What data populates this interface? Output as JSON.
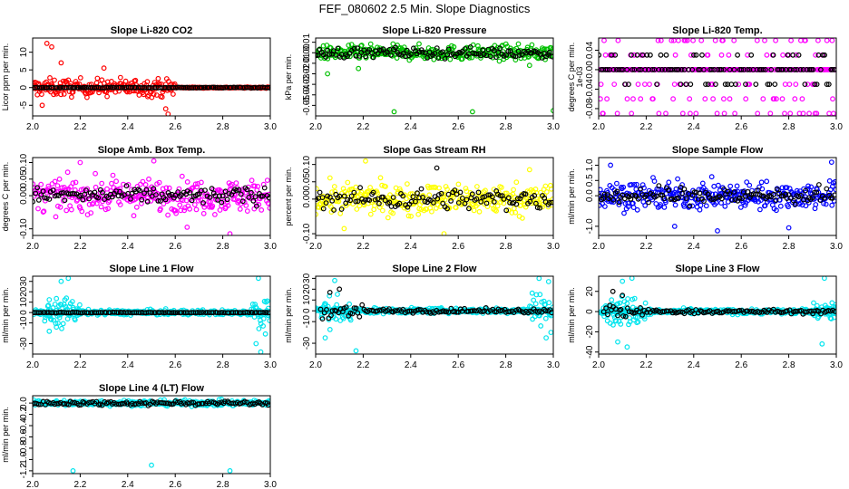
{
  "figure": {
    "title": "FEF_080602  2.5 Min. Slope Diagnostics"
  },
  "chart_data": [
    {
      "type": "scatter",
      "title": "Slope Li-820 CO2",
      "ylabel": "Licor ppm per min.",
      "xlim": [
        2.0,
        3.0
      ],
      "ylim": [
        -8,
        14
      ],
      "x_ticks": [
        "2.0",
        "2.2",
        "2.4",
        "2.6",
        "2.8",
        "3.0"
      ],
      "y_ticks": [
        "-5",
        "0",
        "5",
        "10"
      ],
      "series": [
        {
          "name": "all",
          "color": "#ff0000",
          "spread": 2.5,
          "x_range": [
            2.0,
            2.6
          ],
          "outliers": [
            [
              2.06,
              12.5
            ],
            [
              2.08,
              11.5
            ],
            [
              2.04,
              -5
            ],
            [
              2.56,
              -6
            ],
            [
              2.57,
              -7.5
            ],
            [
              2.12,
              7
            ],
            [
              2.3,
              5.5
            ]
          ]
        },
        {
          "name": "all",
          "color": "#ff0000",
          "spread": 0.15,
          "x_range": [
            2.6,
            3.0
          ],
          "outliers": []
        },
        {
          "name": "selected",
          "color": "#000000",
          "spread": 0.1,
          "x_range": [
            2.0,
            3.0
          ],
          "outliers": []
        }
      ]
    },
    {
      "type": "scatter",
      "title": "Slope Li-820 Pressure",
      "ylabel": "kPa per min.",
      "xlim": [
        2.0,
        3.0
      ],
      "ylim": [
        -0.06,
        0.014
      ],
      "x_ticks": [
        "2.0",
        "2.2",
        "2.4",
        "2.6",
        "2.8",
        "3.0"
      ],
      "y_ticks": [
        "-0.05",
        "-0.04",
        "-0.03",
        "-0.02",
        "-0.01",
        "0.00",
        "0.01"
      ],
      "series": [
        {
          "name": "all",
          "color": "#00c000",
          "spread": 0.007,
          "x_range": [
            2.0,
            3.0
          ],
          "outliers": [
            [
              2.33,
              -0.056
            ],
            [
              2.66,
              -0.056
            ],
            [
              3.0,
              -0.055
            ],
            [
              2.05,
              -0.02
            ],
            [
              2.9,
              -0.012
            ],
            [
              2.18,
              -0.015
            ]
          ]
        },
        {
          "name": "selected",
          "color": "#000000",
          "spread": 0.005,
          "x_range": [
            2.0,
            3.0
          ],
          "outliers": []
        }
      ]
    },
    {
      "type": "scatter",
      "title": "Slope Li-820 Temp.",
      "ylabel": "degrees C per min.",
      "y_multiplier": "1e-03",
      "xlim": [
        2.0,
        3.0
      ],
      "ylim": [
        -0.095,
        0.065
      ],
      "x_ticks": [
        "2.0",
        "2.2",
        "2.4",
        "2.6",
        "2.8",
        "3.0"
      ],
      "y_ticks": [
        "-0.08",
        "-0.04",
        "0.00",
        "0.04"
      ],
      "series": [
        {
          "name": "all",
          "color": "#ff00ff",
          "levels": [
            0.06,
            0.03,
            0.0,
            -0.03,
            -0.06,
            -0.09
          ],
          "x_range": [
            2.0,
            3.0
          ],
          "outliers": []
        },
        {
          "name": "selected",
          "color": "#000000",
          "levels": [
            0.0,
            0.0,
            0.0,
            0.03,
            -0.03
          ],
          "x_range": [
            2.0,
            3.0
          ],
          "outliers": []
        }
      ]
    },
    {
      "type": "scatter",
      "title": "Slope Amb. Box Temp.",
      "ylabel": "degrees C per min.",
      "xlim": [
        2.0,
        3.0
      ],
      "ylim": [
        -0.12,
        0.115
      ],
      "x_ticks": [
        "2.0",
        "2.2",
        "2.4",
        "2.6",
        "2.8",
        "3.0"
      ],
      "y_ticks": [
        "-0.10",
        "0.00",
        "0.05",
        "0.10"
      ],
      "series": [
        {
          "name": "all",
          "color": "#ff00ff",
          "spread": 0.05,
          "x_range": [
            2.0,
            3.0
          ],
          "outliers": [
            [
              2.51,
              0.105
            ],
            [
              2.83,
              -0.115
            ],
            [
              2.2,
              0.1
            ],
            [
              2.65,
              -0.095
            ]
          ]
        },
        {
          "name": "selected",
          "color": "#000000",
          "spread": 0.025,
          "x_range": [
            2.0,
            3.0
          ],
          "outliers": []
        }
      ]
    },
    {
      "type": "scatter",
      "title": "Slope Gas Stream RH",
      "ylabel": "percent per min.",
      "xlim": [
        2.0,
        3.0
      ],
      "ylim": [
        -0.105,
        0.12
      ],
      "x_ticks": [
        "2.0",
        "2.2",
        "2.4",
        "2.6",
        "2.8",
        "3.0"
      ],
      "y_ticks": [
        "-0.10",
        "0.00",
        "0.05",
        "0.10"
      ],
      "series": [
        {
          "name": "all",
          "color": "#ffff00",
          "spread": 0.045,
          "x_range": [
            2.0,
            3.0
          ],
          "outliers": [
            [
              2.21,
              0.11
            ],
            [
              2.54,
              -0.1
            ],
            [
              2.12,
              -0.085
            ],
            [
              2.9,
              0.085
            ]
          ]
        },
        {
          "name": "selected",
          "color": "#000000",
          "spread": 0.03,
          "x_range": [
            2.0,
            3.0
          ],
          "outliers": [
            [
              2.51,
              0.09
            ]
          ]
        }
      ]
    },
    {
      "type": "scatter",
      "title": "Slope Sample Flow",
      "ylabel": "ml/min per min.",
      "xlim": [
        2.0,
        3.0
      ],
      "ylim": [
        -1.3,
        1.25
      ],
      "x_ticks": [
        "2.0",
        "2.2",
        "2.4",
        "2.6",
        "2.8",
        "3.0"
      ],
      "y_ticks": [
        "-1.0",
        "0.0",
        "0.5",
        "1.0"
      ],
      "series": [
        {
          "name": "all",
          "color": "#0000ff",
          "spread": 0.45,
          "x_range": [
            2.0,
            3.0
          ],
          "outliers": [
            [
              2.5,
              -1.15
            ],
            [
              2.8,
              -1.05
            ],
            [
              2.05,
              1.0
            ],
            [
              2.98,
              1.1
            ],
            [
              2.32,
              -1.0
            ]
          ]
        },
        {
          "name": "selected",
          "color": "#000000",
          "spread": 0.3,
          "x_range": [
            2.0,
            3.0
          ],
          "outliers": []
        }
      ]
    },
    {
      "type": "scatter",
      "title": "Slope Line 1 Flow",
      "ylabel": "ml/min per min.",
      "xlim": [
        2.0,
        3.0
      ],
      "ylim": [
        -40,
        35
      ],
      "x_ticks": [
        "2.0",
        "2.2",
        "2.4",
        "2.6",
        "2.8",
        "3.0"
      ],
      "y_ticks": [
        "-30",
        "-10",
        "0",
        "10",
        "20",
        "30"
      ],
      "series": [
        {
          "name": "all",
          "color": "#00e5ee",
          "spread": 2.5,
          "x_range": [
            2.0,
            3.0
          ],
          "outliers": []
        },
        {
          "name": "all",
          "color": "#00e5ee",
          "spread": 14,
          "x_range": [
            2.05,
            2.2
          ],
          "outliers": [
            [
              2.15,
              33
            ],
            [
              2.12,
              30
            ],
            [
              2.07,
              -18
            ],
            [
              2.1,
              -14
            ]
          ]
        },
        {
          "name": "all",
          "color": "#00e5ee",
          "spread": 16,
          "x_range": [
            2.92,
            3.0
          ],
          "outliers": [
            [
              2.95,
              33
            ],
            [
              2.96,
              -38
            ],
            [
              2.94,
              -30
            ]
          ]
        },
        {
          "name": "selected",
          "color": "#000000",
          "spread": 0.3,
          "x_range": [
            2.0,
            3.0
          ],
          "outliers": []
        }
      ]
    },
    {
      "type": "scatter",
      "title": "Slope Line 2 Flow",
      "ylabel": "ml/min per min.",
      "xlim": [
        2.0,
        3.0
      ],
      "ylim": [
        -40,
        32
      ],
      "x_ticks": [
        "2.0",
        "2.2",
        "2.4",
        "2.6",
        "2.8",
        "3.0"
      ],
      "y_ticks": [
        "-30",
        "-10",
        "0",
        "10",
        "20",
        "30"
      ],
      "series": [
        {
          "name": "all",
          "color": "#00e5ee",
          "spread": 2.5,
          "x_range": [
            2.0,
            3.0
          ],
          "outliers": []
        },
        {
          "name": "all",
          "color": "#00e5ee",
          "spread": 13,
          "x_range": [
            2.02,
            2.15
          ],
          "outliers": [
            [
              2.08,
              28
            ],
            [
              2.04,
              -25
            ],
            [
              2.17,
              -37
            ]
          ]
        },
        {
          "name": "all",
          "color": "#00e5ee",
          "spread": 15,
          "x_range": [
            2.9,
            3.0
          ],
          "outliers": [
            [
              2.94,
              30
            ],
            [
              2.98,
              27
            ],
            [
              2.97,
              -25
            ],
            [
              2.99,
              -20
            ]
          ]
        },
        {
          "name": "selected",
          "color": "#000000",
          "spread": 7,
          "x_range": [
            2.02,
            2.2
          ],
          "outliers": [
            [
              2.06,
              17
            ],
            [
              2.1,
              20
            ]
          ]
        },
        {
          "name": "selected",
          "color": "#000000",
          "spread": 2,
          "x_range": [
            2.2,
            3.0
          ],
          "outliers": []
        }
      ]
    },
    {
      "type": "scatter",
      "title": "Slope Line 3 Flow",
      "ylabel": "ml/min per min.",
      "xlim": [
        2.0,
        3.0
      ],
      "ylim": [
        -42,
        35
      ],
      "x_ticks": [
        "2.0",
        "2.2",
        "2.4",
        "2.6",
        "2.8",
        "3.0"
      ],
      "y_ticks": [
        "-40",
        "-20",
        "0",
        "20"
      ],
      "series": [
        {
          "name": "all",
          "color": "#00e5ee",
          "spread": 2.5,
          "x_range": [
            2.0,
            3.0
          ],
          "outliers": []
        },
        {
          "name": "all",
          "color": "#00e5ee",
          "spread": 16,
          "x_range": [
            2.02,
            2.2
          ],
          "outliers": [
            [
              2.14,
              33
            ],
            [
              2.1,
              30
            ],
            [
              2.12,
              -35
            ],
            [
              2.08,
              -30
            ]
          ]
        },
        {
          "name": "all",
          "color": "#00e5ee",
          "spread": 12,
          "x_range": [
            2.9,
            3.0
          ],
          "outliers": [
            [
              2.95,
              33
            ],
            [
              2.94,
              -32
            ]
          ]
        },
        {
          "name": "selected",
          "color": "#000000",
          "spread": 7,
          "x_range": [
            2.02,
            2.2
          ],
          "outliers": [
            [
              2.06,
              20
            ],
            [
              2.1,
              16
            ]
          ]
        },
        {
          "name": "selected",
          "color": "#000000",
          "spread": 2,
          "x_range": [
            2.2,
            3.0
          ],
          "outliers": []
        }
      ]
    },
    {
      "type": "scatter",
      "title": "Slope Line 4 (LT) Flow",
      "ylabel": "ml/min per min.",
      "xlim": [
        2.0,
        3.0
      ],
      "ylim": [
        -1.25,
        0.13
      ],
      "x_ticks": [
        "2.0",
        "2.2",
        "2.4",
        "2.6",
        "2.8",
        "3.0"
      ],
      "y_ticks": [
        "-1.2",
        "-1.0",
        "-0.8",
        "-0.6",
        "-0.4",
        "-0.2",
        "0.0"
      ],
      "series": [
        {
          "name": "all",
          "color": "#00e5ee",
          "spread": 0.05,
          "x_range": [
            2.0,
            3.0
          ],
          "outliers": [
            [
              2.5,
              -1.1
            ],
            [
              2.17,
              -1.2
            ],
            [
              2.83,
              -1.2
            ]
          ]
        },
        {
          "name": "selected",
          "color": "#000000",
          "spread": 0.04,
          "x_range": [
            2.0,
            3.0
          ],
          "outliers": []
        }
      ]
    }
  ]
}
